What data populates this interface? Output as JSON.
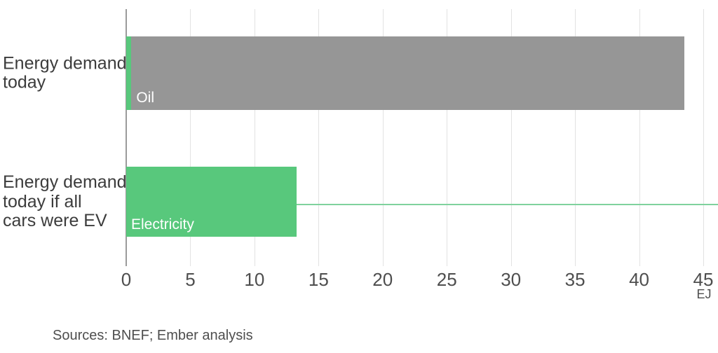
{
  "chart_data": {
    "type": "bar",
    "orientation": "horizontal",
    "title": "",
    "xlabel": "EJ",
    "unit": "EJ",
    "xlim": [
      0,
      45
    ],
    "xticks": [
      0,
      5,
      10,
      15,
      20,
      25,
      30,
      35,
      40,
      45
    ],
    "grid": true,
    "legend_position": "none",
    "bars": [
      {
        "category": "Energy demand today",
        "category_lines": [
          "Energy demand",
          "today"
        ],
        "total": 43.5,
        "segments": [
          {
            "name": "Electricity",
            "value": 0.4,
            "color_key": "electricity",
            "label": ""
          },
          {
            "name": "Oil",
            "value": 43.1,
            "color_key": "oil",
            "label": "Oil"
          }
        ]
      },
      {
        "category": "Energy demand today if all cars were EV",
        "category_lines": [
          "Energy demand",
          "today if all",
          "cars were EV"
        ],
        "total": 13.3,
        "segments": [
          {
            "name": "Electricity",
            "value": 13.3,
            "color_key": "electricity",
            "label": "Electricity"
          }
        ]
      }
    ],
    "reference_line": {
      "from_value": 13.3,
      "to_edge": true
    }
  },
  "colors": {
    "electricity": "#58C87C",
    "oil": "#969696",
    "reference_line": "#7FD29D",
    "axis_line": "#9B9B9B",
    "gridline": "#E2E2E2",
    "label_text": "#3C3C3C",
    "tick_text": "#4E4E4E",
    "bar_label_text": "#FFFFFF"
  },
  "source_note": "Sources: BNEF; Ember analysis"
}
